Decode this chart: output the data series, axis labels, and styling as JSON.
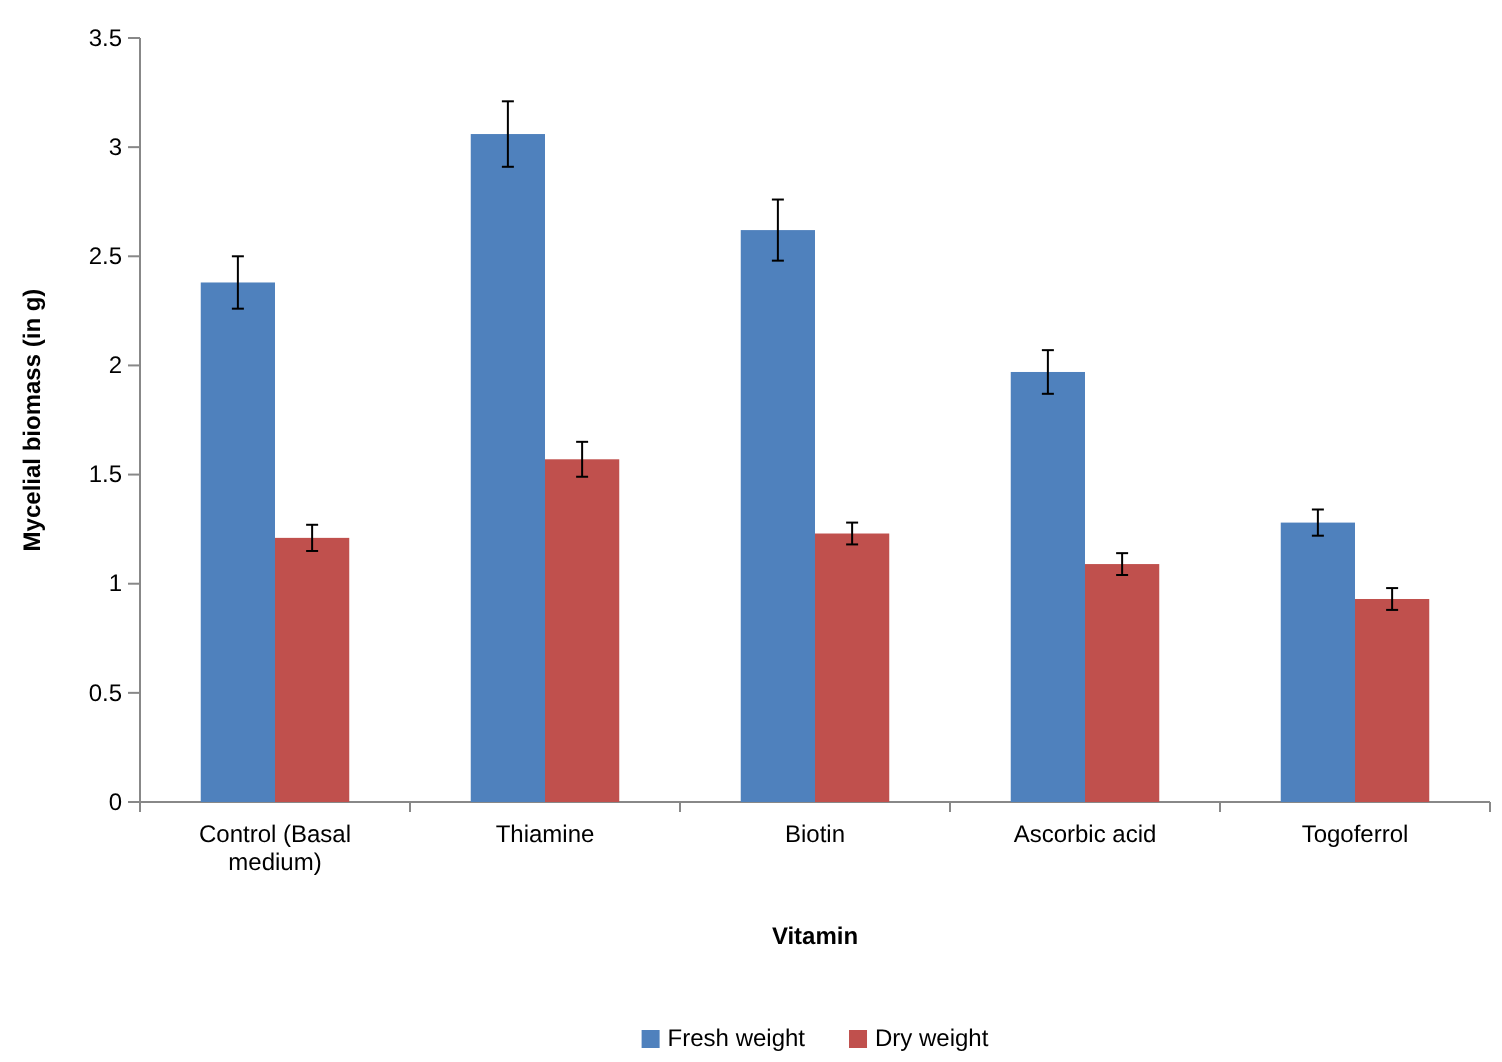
{
  "chart_data": {
    "type": "bar",
    "xlabel": "Vitamin",
    "ylabel": "Mycelial biomass (in g)",
    "categories": [
      "Control (Basal medium)",
      "Thiamine",
      "Biotin",
      "Ascorbic acid",
      "Togoferrol"
    ],
    "series": [
      {
        "name": "Fresh weight",
        "color": "#4f81bd",
        "values": [
          2.38,
          3.06,
          2.62,
          1.97,
          1.28
        ],
        "errors": [
          0.12,
          0.15,
          0.14,
          0.1,
          0.06
        ]
      },
      {
        "name": "Dry weight",
        "color": "#c0504d",
        "values": [
          1.21,
          1.57,
          1.23,
          1.09,
          0.93
        ],
        "errors": [
          0.06,
          0.08,
          0.05,
          0.05,
          0.05
        ]
      }
    ],
    "ylim": [
      0,
      3.5
    ],
    "yticks": [
      0,
      0.5,
      1,
      1.5,
      2,
      2.5,
      3,
      3.5
    ],
    "grid": false,
    "legend": "bottom"
  }
}
